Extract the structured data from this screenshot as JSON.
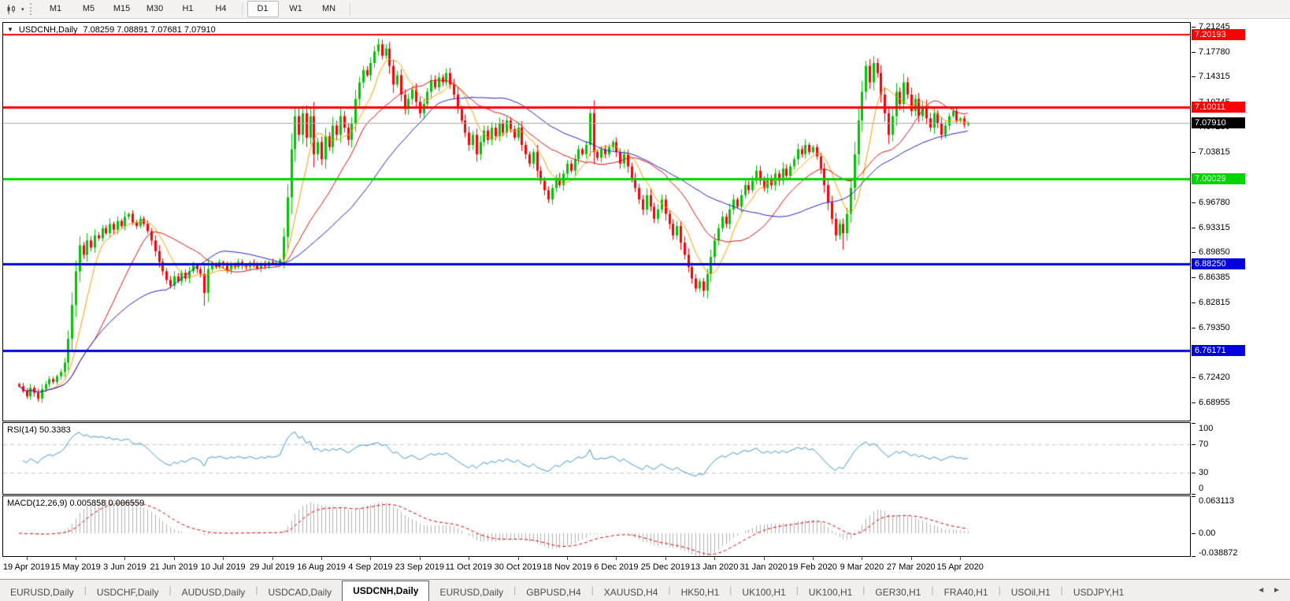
{
  "toolbar": {
    "chart_icon": "chart-icon",
    "timeframes": [
      {
        "label": "M1",
        "active": false
      },
      {
        "label": "M5",
        "active": false
      },
      {
        "label": "M15",
        "active": false
      },
      {
        "label": "M30",
        "active": false
      },
      {
        "label": "H1",
        "active": false
      },
      {
        "label": "H4",
        "active": false
      },
      {
        "label": "D1",
        "active": true
      },
      {
        "label": "W1",
        "active": false
      },
      {
        "label": "MN",
        "active": false
      }
    ]
  },
  "chart": {
    "title": {
      "symbol": "USDCNH,Daily",
      "ohlc": "7.08259 7.08891 7.07681 7.07910"
    },
    "y_ticks": [
      "7.21245",
      "7.17780",
      "7.14315",
      "7.10745",
      "7.07280",
      "7.03815",
      "6.96780",
      "6.93315",
      "6.89850",
      "6.86385",
      "6.82815",
      "6.79350",
      "6.72420",
      "6.68955"
    ],
    "levels": [
      {
        "value": 7.20193,
        "label": "7.20193",
        "color": "#ff0000",
        "width": 2
      },
      {
        "value": 7.10011,
        "label": "7.10011",
        "color": "#ff0000",
        "width": 3
      },
      {
        "value": 7.00029,
        "label": "7.00029",
        "color": "#00d400",
        "width": 3
      },
      {
        "value": 6.8825,
        "label": "6.88250",
        "color": "#0000dd",
        "width": 3
      },
      {
        "value": 6.76171,
        "label": "6.76171",
        "color": "#0000dd",
        "width": 3
      }
    ],
    "current_price": {
      "value": 7.0791,
      "label": "7.07910",
      "line_color": "#a8a8a8",
      "badge_color": "#000000"
    },
    "x_labels": [
      "19 Apr 2019",
      "15 May 2019",
      "3 Jun 2019",
      "21 Jun 2019",
      "10 Jul 2019",
      "29 Jul 2019",
      "16 Aug 2019",
      "4 Sep 2019",
      "23 Sep 2019",
      "11 Oct 2019",
      "30 Oct 2019",
      "18 Nov 2019",
      "6 Dec 2019",
      "25 Dec 2019",
      "13 Jan 2020",
      "31 Jan 2020",
      "19 Feb 2020",
      "9 Mar 2020",
      "27 Mar 2020",
      "15 Apr 2020"
    ]
  },
  "rsi": {
    "label": "RSI(14) 50.3383",
    "value": 50.3383,
    "period": 14,
    "ticks": [
      {
        "label": "100",
        "value": 100
      },
      {
        "label": "70",
        "value": 70
      },
      {
        "label": "30",
        "value": 30
      },
      {
        "label": "0",
        "value": 0
      }
    ],
    "dashed_levels": [
      70,
      30
    ],
    "line_color": "#3f97dd"
  },
  "macd": {
    "label": "MACD(12,26,9) 0.005858 0.006559",
    "values": [
      0.005858,
      0.006559
    ],
    "params": [
      12,
      26,
      9
    ],
    "ticks": [
      {
        "label": "0.063113",
        "value": 0.063113
      },
      {
        "label": "0.00",
        "value": 0
      },
      {
        "label": "-0.038872",
        "value": -0.038872
      }
    ],
    "bar_color": "#b2b2b2",
    "signal_color": "#e00000"
  },
  "tabs": [
    {
      "label": "EURUSD,Daily",
      "active": false
    },
    {
      "label": "USDCHF,Daily",
      "active": false
    },
    {
      "label": "AUDUSD,Daily",
      "active": false
    },
    {
      "label": "USDCAD,Daily",
      "active": false
    },
    {
      "label": "USDCNH,Daily",
      "active": true
    },
    {
      "label": "EURUSD,Daily",
      "active": false
    },
    {
      "label": "GBPUSD,H4",
      "active": false
    },
    {
      "label": "XAUUSD,H4",
      "active": false
    },
    {
      "label": "HK50,H1",
      "active": false
    },
    {
      "label": "UK100,H1",
      "active": false
    },
    {
      "label": "UK100,H1",
      "active": false
    },
    {
      "label": "GER30,H1",
      "active": false
    },
    {
      "label": "FRA40,H1",
      "active": false
    },
    {
      "label": "USOil,H1",
      "active": false
    },
    {
      "label": "USDJPY,H1",
      "active": false
    }
  ],
  "chart_data": {
    "type": "candlestick",
    "symbol": "USDCNH",
    "timeframe": "Daily",
    "ylim": [
      6.6643,
      7.2179
    ],
    "colors": {
      "up": "#00c300",
      "down": "#fb0000",
      "ma_fast": "#ff9b00",
      "ma_medium": "#e01010",
      "ma_slow": "#2121cc"
    },
    "moving_averages": [
      {
        "name": "fast",
        "period": 8,
        "color": "#ff9b00"
      },
      {
        "name": "medium",
        "period": 21,
        "color": "#e01010"
      },
      {
        "name": "slow",
        "period": 40,
        "color": "#2121cc"
      }
    ],
    "closes": [
      6.712,
      6.705,
      6.698,
      6.71,
      6.703,
      6.695,
      6.708,
      6.715,
      6.722,
      6.718,
      6.726,
      6.732,
      6.745,
      6.778,
      6.825,
      6.872,
      6.908,
      6.895,
      6.915,
      6.905,
      6.922,
      6.918,
      6.932,
      6.925,
      6.938,
      6.93,
      6.942,
      6.935,
      6.948,
      6.952,
      6.94,
      6.935,
      6.945,
      6.938,
      6.928,
      6.915,
      6.9,
      6.885,
      6.872,
      6.86,
      6.852,
      6.865,
      6.858,
      6.87,
      6.862,
      6.872,
      6.88,
      6.875,
      6.868,
      6.842,
      6.875,
      6.882,
      6.878,
      6.885,
      6.88,
      6.874,
      6.882,
      6.878,
      6.885,
      6.88,
      6.878,
      6.884,
      6.88,
      6.876,
      6.883,
      6.879,
      6.885,
      6.882,
      6.884,
      6.888,
      6.92,
      6.975,
      7.042,
      7.088,
      7.062,
      7.092,
      7.058,
      7.088,
      7.035,
      7.052,
      7.028,
      7.06,
      7.045,
      7.075,
      7.062,
      7.088,
      7.072,
      7.055,
      7.078,
      7.112,
      7.135,
      7.152,
      7.145,
      7.162,
      7.178,
      7.188,
      7.172,
      7.182,
      7.158,
      7.132,
      7.145,
      7.118,
      7.098,
      7.112,
      7.125,
      7.108,
      7.092,
      7.105,
      7.122,
      7.138,
      7.128,
      7.142,
      7.135,
      7.148,
      7.132,
      7.118,
      7.098,
      7.082,
      7.065,
      7.048,
      7.062,
      7.035,
      7.052,
      7.068,
      7.055,
      7.072,
      7.06,
      7.078,
      7.065,
      7.082,
      7.07,
      7.058,
      7.072,
      7.048,
      7.035,
      7.022,
      7.038,
      7.012,
      6.998,
      6.985,
      6.972,
      6.988,
      7.002,
      6.992,
      7.008,
      7.022,
      7.012,
      7.028,
      7.042,
      7.035,
      7.048,
      7.092,
      7.038,
      7.03,
      7.042,
      7.035,
      7.045,
      7.052,
      7.038,
      7.022,
      7.035,
      7.018,
      7.002,
      6.988,
      6.972,
      6.958,
      6.978,
      6.962,
      6.945,
      6.958,
      6.972,
      6.952,
      6.938,
      6.922,
      6.935,
      6.912,
      6.895,
      6.878,
      6.862,
      6.848,
      6.858,
      6.845,
      6.868,
      6.892,
      6.915,
      6.932,
      6.948,
      6.938,
      6.958,
      6.972,
      6.962,
      6.978,
      6.992,
      6.985,
      6.998,
      7.012,
      6.998,
      6.988,
      7.002,
      6.992,
      7.008,
      6.998,
      7.015,
      7.005,
      7.018,
      7.028,
      7.042,
      7.035,
      7.048,
      7.038,
      7.045,
      7.032,
      7.015,
      6.992,
      6.968,
      6.945,
      6.922,
      6.938,
      6.925,
      6.952,
      6.988,
      7.035,
      7.082,
      7.122,
      7.158,
      7.135,
      7.162,
      7.148,
      7.118,
      7.092,
      7.062,
      7.088,
      7.122,
      7.105,
      7.135,
      7.118,
      7.095,
      7.112,
      7.088,
      7.102,
      7.085,
      7.072,
      7.092,
      7.078,
      7.062,
      7.075,
      7.088,
      7.095,
      7.082,
      7.085,
      7.076,
      7.079
    ],
    "wick_overrides": {
      "49": {
        "low": 6.824
      },
      "95": {
        "high": 7.196
      },
      "151": {
        "high": 7.098
      },
      "181": {
        "low": 6.836
      },
      "218": {
        "low": 6.902
      },
      "224": {
        "high": 7.165
      }
    },
    "indicators": [
      {
        "name": "RSI",
        "period": 14,
        "current": 50.3383
      },
      {
        "name": "MACD",
        "params": [
          12,
          26,
          9
        ],
        "current": [
          0.005858,
          0.006559
        ]
      }
    ]
  }
}
